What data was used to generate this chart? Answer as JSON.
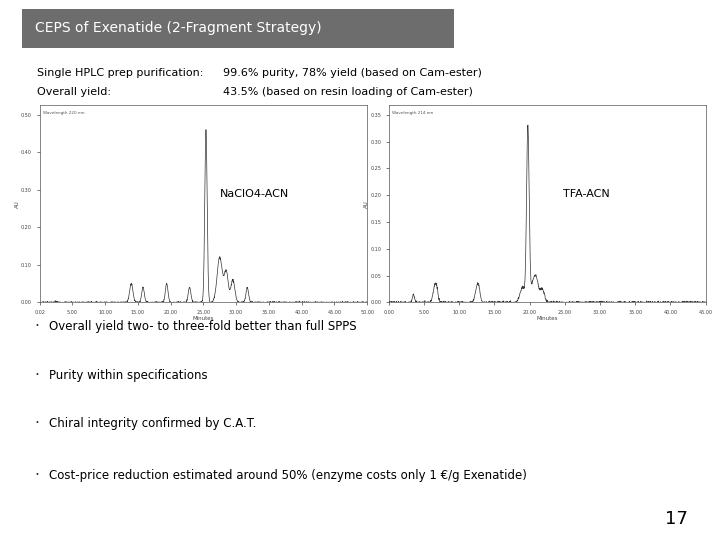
{
  "title": "CEPS of Exenatide (2-Fragment Strategy)",
  "title_bg": "#6d6d6d",
  "title_fg": "#ffffff",
  "line1_left": "Single HPLC prep purification:",
  "line1_right": "99.6% purity, 78% yield (based on Cam-ester)",
  "line2_left": "Overall yield:",
  "line2_right": "43.5% (based on resin loading of Cam-ester)",
  "label_left": "NaClO4-ACN",
  "label_right": "TFA-ACN",
  "header_left": "Wavelength 220 nm",
  "header_right": "Wavelength 214 nm",
  "ylabel_left": "AU",
  "ylabel_right": "AU",
  "bullets": [
    "Overall yield two- to three-fold better than full SPPS",
    "Purity within specifications",
    "Chiral integrity confirmed by C.A.T.",
    "Cost-price reduction estimated around 50% (enzyme costs only 1 €/g Exenatide)"
  ],
  "page_number": "17",
  "bg_color": "#ffffff",
  "text_color": "#000000"
}
